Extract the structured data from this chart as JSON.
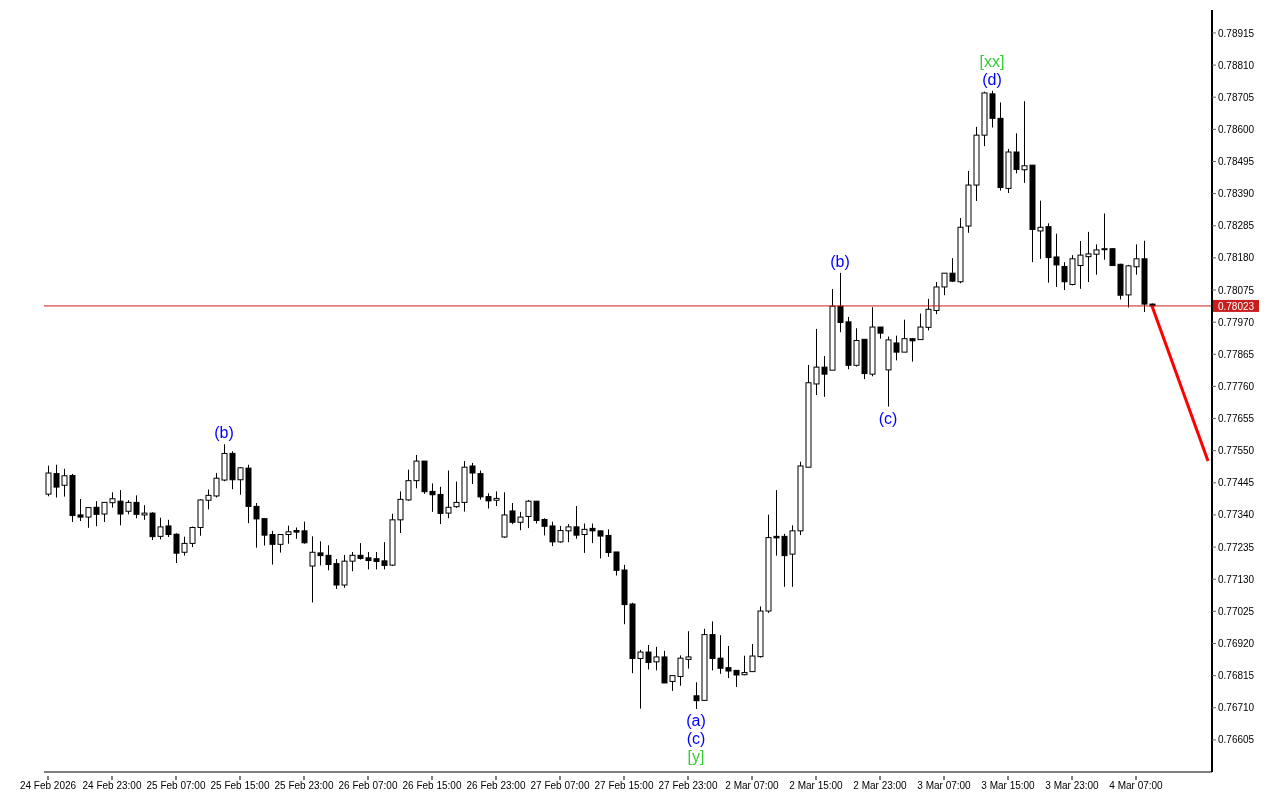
{
  "chart_data": {
    "type": "candlestick",
    "categories": [
      "24 Feb 2026",
      null,
      null,
      null,
      null,
      null,
      null,
      null,
      "24 Feb 23:00",
      null,
      null,
      null,
      null,
      null,
      null,
      null,
      "25 Feb 07:00",
      null,
      null,
      null,
      null,
      null,
      null,
      null,
      "25 Feb 15:00",
      null,
      null,
      null,
      null,
      null,
      null,
      null,
      "25 Feb 23:00",
      null,
      null,
      null,
      null,
      null,
      null,
      null,
      "26 Feb 07:00",
      null,
      null,
      null,
      null,
      null,
      null,
      null,
      "26 Feb 15:00",
      null,
      null,
      null,
      null,
      null,
      null,
      null,
      "26 Feb 23:00",
      null,
      null,
      null,
      null,
      null,
      null,
      null,
      "27 Feb 07:00",
      null,
      null,
      null,
      null,
      null,
      null,
      null,
      "27 Feb 15:00",
      null,
      null,
      null,
      null,
      null,
      null,
      null,
      "27 Feb 23:00",
      null,
      null,
      null,
      null,
      null,
      null,
      null,
      "2 Mar 07:00",
      null,
      null,
      null,
      null,
      null,
      null,
      null,
      "2 Mar 15:00",
      null,
      null,
      null,
      null,
      null,
      null,
      null,
      "2 Mar 23:00",
      null,
      null,
      null,
      null,
      null,
      null,
      null,
      "3 Mar 07:00",
      null,
      null,
      null,
      null,
      null,
      null,
      null,
      "3 Mar 15:00",
      null,
      null,
      null,
      null,
      null,
      null,
      null,
      "3 Mar 23:00",
      null,
      null,
      null,
      null,
      null,
      null,
      null,
      "4 Mar 07:00",
      null,
      null,
      null,
      null,
      null,
      null,
      null,
      null,
      null
    ],
    "ohlc": [
      [
        0.77408,
        0.77501,
        0.77401,
        0.77477
      ],
      [
        0.77475,
        0.77504,
        0.77397,
        0.77431
      ],
      [
        0.77437,
        0.77491,
        0.774,
        0.77468
      ],
      [
        0.77469,
        0.77474,
        0.77317,
        0.77338
      ],
      [
        0.7734,
        0.77392,
        0.7732,
        0.77333
      ],
      [
        0.77333,
        0.77365,
        0.77298,
        0.77364
      ],
      [
        0.77365,
        0.77385,
        0.77303,
        0.77342
      ],
      [
        0.77343,
        0.77382,
        0.77317,
        0.77381
      ],
      [
        0.7738,
        0.77414,
        0.77364,
        0.77393
      ],
      [
        0.77385,
        0.77421,
        0.77306,
        0.77343
      ],
      [
        0.77352,
        0.77388,
        0.77342,
        0.77381
      ],
      [
        0.77381,
        0.77404,
        0.77329,
        0.77342
      ],
      [
        0.7734,
        0.77372,
        0.77324,
        0.77346
      ],
      [
        0.77346,
        0.77349,
        0.77258,
        0.77269
      ],
      [
        0.7727,
        0.77331,
        0.7726,
        0.77301
      ],
      [
        0.77304,
        0.77324,
        0.77268,
        0.77276
      ],
      [
        0.77277,
        0.7728,
        0.77183,
        0.77215
      ],
      [
        0.77218,
        0.77269,
        0.77207,
        0.77247
      ],
      [
        0.77247,
        0.77302,
        0.77235,
        0.77299
      ],
      [
        0.77299,
        0.77391,
        0.77272,
        0.77389
      ],
      [
        0.77388,
        0.77423,
        0.77358,
        0.77404
      ],
      [
        0.77402,
        0.77477,
        0.77397,
        0.7746
      ],
      [
        0.77454,
        0.77571,
        0.7745,
        0.77541
      ],
      [
        0.77541,
        0.77548,
        0.77424,
        0.77455
      ],
      [
        0.77455,
        0.77496,
        0.77406,
        0.77494
      ],
      [
        0.77493,
        0.77504,
        0.77313,
        0.77368
      ],
      [
        0.77368,
        0.77379,
        0.77233,
        0.77327
      ],
      [
        0.77328,
        0.77328,
        0.7724,
        0.77274
      ],
      [
        0.77276,
        0.77288,
        0.77178,
        0.77244
      ],
      [
        0.77244,
        0.77276,
        0.77217,
        0.77276
      ],
      [
        0.77276,
        0.77305,
        0.77246,
        0.77285
      ],
      [
        0.77289,
        0.77299,
        0.77262,
        0.77284
      ],
      [
        0.77288,
        0.77318,
        0.77246,
        0.77249
      ],
      [
        0.77173,
        0.7727,
        0.77054,
        0.77218
      ],
      [
        0.77216,
        0.77254,
        0.77175,
        0.77207
      ],
      [
        0.77208,
        0.77241,
        0.77159,
        0.77178
      ],
      [
        0.77181,
        0.77196,
        0.77098,
        0.77111
      ],
      [
        0.77111,
        0.77209,
        0.77102,
        0.77189
      ],
      [
        0.77189,
        0.77219,
        0.77156,
        0.77208
      ],
      [
        0.77208,
        0.77248,
        0.77194,
        0.77198
      ],
      [
        0.772,
        0.77219,
        0.77162,
        0.77191
      ],
      [
        0.77197,
        0.77219,
        0.77162,
        0.77188
      ],
      [
        0.7719,
        0.77251,
        0.77162,
        0.77175
      ],
      [
        0.77176,
        0.77344,
        0.77173,
        0.77324
      ],
      [
        0.77324,
        0.77417,
        0.77281,
        0.77391
      ],
      [
        0.77389,
        0.77488,
        0.77386,
        0.77452
      ],
      [
        0.77452,
        0.77536,
        0.77427,
        0.77516
      ],
      [
        0.77516,
        0.77516,
        0.77409,
        0.77416
      ],
      [
        0.77417,
        0.77443,
        0.7735,
        0.77406
      ],
      [
        0.77407,
        0.77432,
        0.7731,
        0.77345
      ],
      [
        0.77346,
        0.77485,
        0.77329,
        0.77365
      ],
      [
        0.77367,
        0.77449,
        0.77363,
        0.77381
      ],
      [
        0.77381,
        0.77516,
        0.77351,
        0.77496
      ],
      [
        0.775,
        0.7751,
        0.77441,
        0.77477
      ],
      [
        0.77475,
        0.77485,
        0.7739,
        0.77399
      ],
      [
        0.774,
        0.77411,
        0.77361,
        0.77386
      ],
      [
        0.77388,
        0.77417,
        0.77369,
        0.77394
      ],
      [
        0.77268,
        0.77414,
        0.77265,
        0.7734
      ],
      [
        0.77353,
        0.77379,
        0.7731,
        0.77316
      ],
      [
        0.77316,
        0.7735,
        0.7729,
        0.77333
      ],
      [
        0.77335,
        0.77389,
        0.77297,
        0.77385
      ],
      [
        0.77385,
        0.77385,
        0.77312,
        0.77322
      ],
      [
        0.77325,
        0.77329,
        0.77273,
        0.77303
      ],
      [
        0.77304,
        0.77318,
        0.77238,
        0.77252
      ],
      [
        0.77252,
        0.77304,
        0.77249,
        0.77289
      ],
      [
        0.77288,
        0.7731,
        0.77251,
        0.77301
      ],
      [
        0.77301,
        0.77369,
        0.77262,
        0.77274
      ],
      [
        0.77276,
        0.77312,
        0.77216,
        0.77293
      ],
      [
        0.77296,
        0.77312,
        0.77248,
        0.77288
      ],
      [
        0.77288,
        0.77288,
        0.77198,
        0.77271
      ],
      [
        0.77273,
        0.77293,
        0.77203,
        0.77217
      ],
      [
        0.77219,
        0.77219,
        0.77142,
        0.77159
      ],
      [
        0.7716,
        0.77177,
        0.76983,
        0.77047
      ],
      [
        0.77049,
        0.77053,
        0.76823,
        0.76871
      ],
      [
        0.76871,
        0.76899,
        0.76707,
        0.76892
      ],
      [
        0.76892,
        0.76915,
        0.76835,
        0.76858
      ],
      [
        0.7686,
        0.76909,
        0.76832,
        0.76876
      ],
      [
        0.76876,
        0.76896,
        0.76791,
        0.76791
      ],
      [
        0.76796,
        0.76815,
        0.76765,
        0.76815
      ],
      [
        0.76812,
        0.76881,
        0.76782,
        0.76872
      ],
      [
        0.76868,
        0.7696,
        0.76838,
        0.76876
      ],
      [
        0.76749,
        0.76793,
        0.76706,
        0.76733
      ],
      [
        0.76734,
        0.76968,
        0.76734,
        0.76949
      ],
      [
        0.76949,
        0.76992,
        0.76832,
        0.76871
      ],
      [
        0.76872,
        0.76947,
        0.76821,
        0.76839
      ],
      [
        0.76841,
        0.76912,
        0.76807,
        0.7683
      ],
      [
        0.76832,
        0.76832,
        0.76778,
        0.76817
      ],
      [
        0.76818,
        0.7688,
        0.76816,
        0.76825
      ],
      [
        0.76828,
        0.76918,
        0.76828,
        0.76879
      ],
      [
        0.76877,
        0.77041,
        0.76874,
        0.77026
      ],
      [
        0.77026,
        0.77341,
        0.7702,
        0.77266
      ],
      [
        0.7727,
        0.77421,
        0.77207,
        0.77265
      ],
      [
        0.7727,
        0.77278,
        0.77105,
        0.77207
      ],
      [
        0.77212,
        0.77306,
        0.77105,
        0.77288
      ],
      [
        0.77288,
        0.77514,
        0.77274,
        0.775
      ],
      [
        0.77496,
        0.7783,
        0.77496,
        0.77772
      ],
      [
        0.77768,
        0.77948,
        0.77732,
        0.77823
      ],
      [
        0.77823,
        0.77859,
        0.77726,
        0.778
      ],
      [
        0.77813,
        0.78078,
        0.77813,
        0.78022
      ],
      [
        0.78022,
        0.78131,
        0.77937,
        0.77969
      ],
      [
        0.77971,
        0.77987,
        0.77816,
        0.77829
      ],
      [
        0.77829,
        0.7795,
        0.77825,
        0.7791
      ],
      [
        0.77914,
        0.77914,
        0.77784,
        0.77802
      ],
      [
        0.778,
        0.78019,
        0.77793,
        0.77954
      ],
      [
        0.77954,
        0.77954,
        0.77916,
        0.77934
      ],
      [
        0.77814,
        0.77923,
        0.77694,
        0.77912
      ],
      [
        0.77902,
        0.77926,
        0.77845,
        0.77872
      ],
      [
        0.77872,
        0.77978,
        0.77872,
        0.77916
      ],
      [
        0.77916,
        0.77918,
        0.77841,
        0.77909
      ],
      [
        0.77913,
        0.77998,
        0.77913,
        0.77954
      ],
      [
        0.77953,
        0.78046,
        0.77943,
        0.78012
      ],
      [
        0.78008,
        0.78101,
        0.77996,
        0.78085
      ],
      [
        0.78085,
        0.7813,
        0.78058,
        0.7813
      ],
      [
        0.7813,
        0.78179,
        0.78102,
        0.78104
      ],
      [
        0.78102,
        0.7831,
        0.78097,
        0.7828
      ],
      [
        0.78284,
        0.78464,
        0.78262,
        0.78418
      ],
      [
        0.78418,
        0.78608,
        0.78366,
        0.78581
      ],
      [
        0.78581,
        0.78723,
        0.78545,
        0.78719
      ],
      [
        0.78716,
        0.78726,
        0.78606,
        0.78636
      ],
      [
        0.78636,
        0.78688,
        0.784,
        0.7841
      ],
      [
        0.78407,
        0.78536,
        0.78392,
        0.78526
      ],
      [
        0.78526,
        0.78587,
        0.78456,
        0.78469
      ],
      [
        0.78468,
        0.78692,
        0.78425,
        0.78481
      ],
      [
        0.78483,
        0.78483,
        0.78166,
        0.78273
      ],
      [
        0.78268,
        0.78367,
        0.78177,
        0.7828
      ],
      [
        0.78282,
        0.78293,
        0.78099,
        0.78181
      ],
      [
        0.78183,
        0.78259,
        0.78085,
        0.78157
      ],
      [
        0.78152,
        0.78166,
        0.78075,
        0.78102
      ],
      [
        0.78093,
        0.78189,
        0.7809,
        0.78177
      ],
      [
        0.78155,
        0.78235,
        0.78079,
        0.78189
      ],
      [
        0.78184,
        0.78265,
        0.78101,
        0.78193
      ],
      [
        0.78192,
        0.78224,
        0.78125,
        0.78206
      ],
      [
        0.78209,
        0.78325,
        0.78174,
        0.7821
      ],
      [
        0.7821,
        0.78211,
        0.78154,
        0.78155
      ],
      [
        0.78159,
        0.78161,
        0.78044,
        0.78058
      ],
      [
        0.78059,
        0.78157,
        0.78018,
        0.78154
      ],
      [
        0.78151,
        0.78224,
        0.78125,
        0.78177
      ],
      [
        0.78177,
        0.78236,
        0.78003,
        0.78029
      ],
      [
        0.78029,
        0.78031,
        0.78015,
        0.78023
      ],
      null,
      null,
      null,
      null,
      null,
      null,
      null
    ],
    "series": [
      {
        "type": "line",
        "color": "#ff0000",
        "values": [
          null,
          null,
          null,
          null,
          null,
          null,
          null,
          null,
          null,
          null,
          null,
          null,
          null,
          null,
          null,
          null,
          null,
          null,
          null,
          null,
          null,
          null,
          null,
          null,
          null,
          null,
          null,
          null,
          null,
          null,
          null,
          null,
          null,
          null,
          null,
          null,
          null,
          null,
          null,
          null,
          null,
          null,
          null,
          null,
          null,
          null,
          null,
          null,
          null,
          null,
          null,
          null,
          null,
          null,
          null,
          null,
          null,
          null,
          null,
          null,
          null,
          null,
          null,
          null,
          null,
          null,
          null,
          null,
          null,
          null,
          null,
          null,
          null,
          null,
          null,
          null,
          null,
          null,
          null,
          null,
          null,
          null,
          null,
          null,
          null,
          null,
          null,
          null,
          null,
          null,
          null,
          null,
          null,
          null,
          null,
          null,
          null,
          null,
          null,
          null,
          null,
          null,
          null,
          null,
          null,
          null,
          null,
          null,
          null,
          null,
          null,
          null,
          null,
          null,
          null,
          null,
          null,
          null,
          null,
          null,
          null,
          null,
          null,
          null,
          null,
          null,
          null,
          null,
          null,
          null,
          null,
          null,
          null,
          null,
          null,
          null,
          null,
          null,
          0.78023,
          null,
          null,
          null,
          null,
          null,
          null,
          0.77516
        ]
      }
    ],
    "marker": "none",
    "ylim": [
      0.765,
      0.7899
    ],
    "yticks": [
      0.76605,
      {
        "value": 0.7671,
        "label": "0.76710"
      },
      0.76815,
      {
        "value": 0.7692,
        "label": "0.76920"
      },
      0.77025,
      {
        "value": 0.7713,
        "label": "0.77130"
      },
      0.77235,
      {
        "value": 0.7734,
        "label": "0.77340"
      },
      0.77445,
      {
        "value": 0.7755,
        "label": "0.77550"
      },
      0.77655,
      {
        "value": 0.7776,
        "label": "0.77760"
      },
      0.77865,
      {
        "value": 0.7797,
        "label": "0.77970"
      },
      0.78075,
      {
        "value": 0.7818,
        "label": "0.78180"
      },
      0.78285,
      {
        "value": 0.7839,
        "label": "0.78390"
      },
      0.78495,
      {
        "value": 0.786,
        "label": "0.78600"
      },
      0.78705,
      {
        "value": 0.7881,
        "label": "0.78810"
      },
      0.78915
    ],
    "ref_lines": [
      {
        "axis": "y",
        "value": 0.78023,
        "label": "0.78023",
        "color": "#c81e1e"
      }
    ],
    "annotations": [
      {
        "text": "(b)",
        "y": 0.77571
      },
      {
        "text": "(a)",
        "y": 0.76706
      },
      {
        "text": "(c)",
        "y": 0.76706
      },
      {
        "text": "[y]",
        "y": 0.76706
      },
      {
        "text": "(b)",
        "y": 0.78131
      },
      {
        "text": "(c)",
        "y": 0.77694
      },
      {
        "text": "(d)",
        "y": 0.78726
      },
      {
        "text": "[xx]",
        "y": 0.78726
      }
    ],
    "line_style": "solid"
  }
}
